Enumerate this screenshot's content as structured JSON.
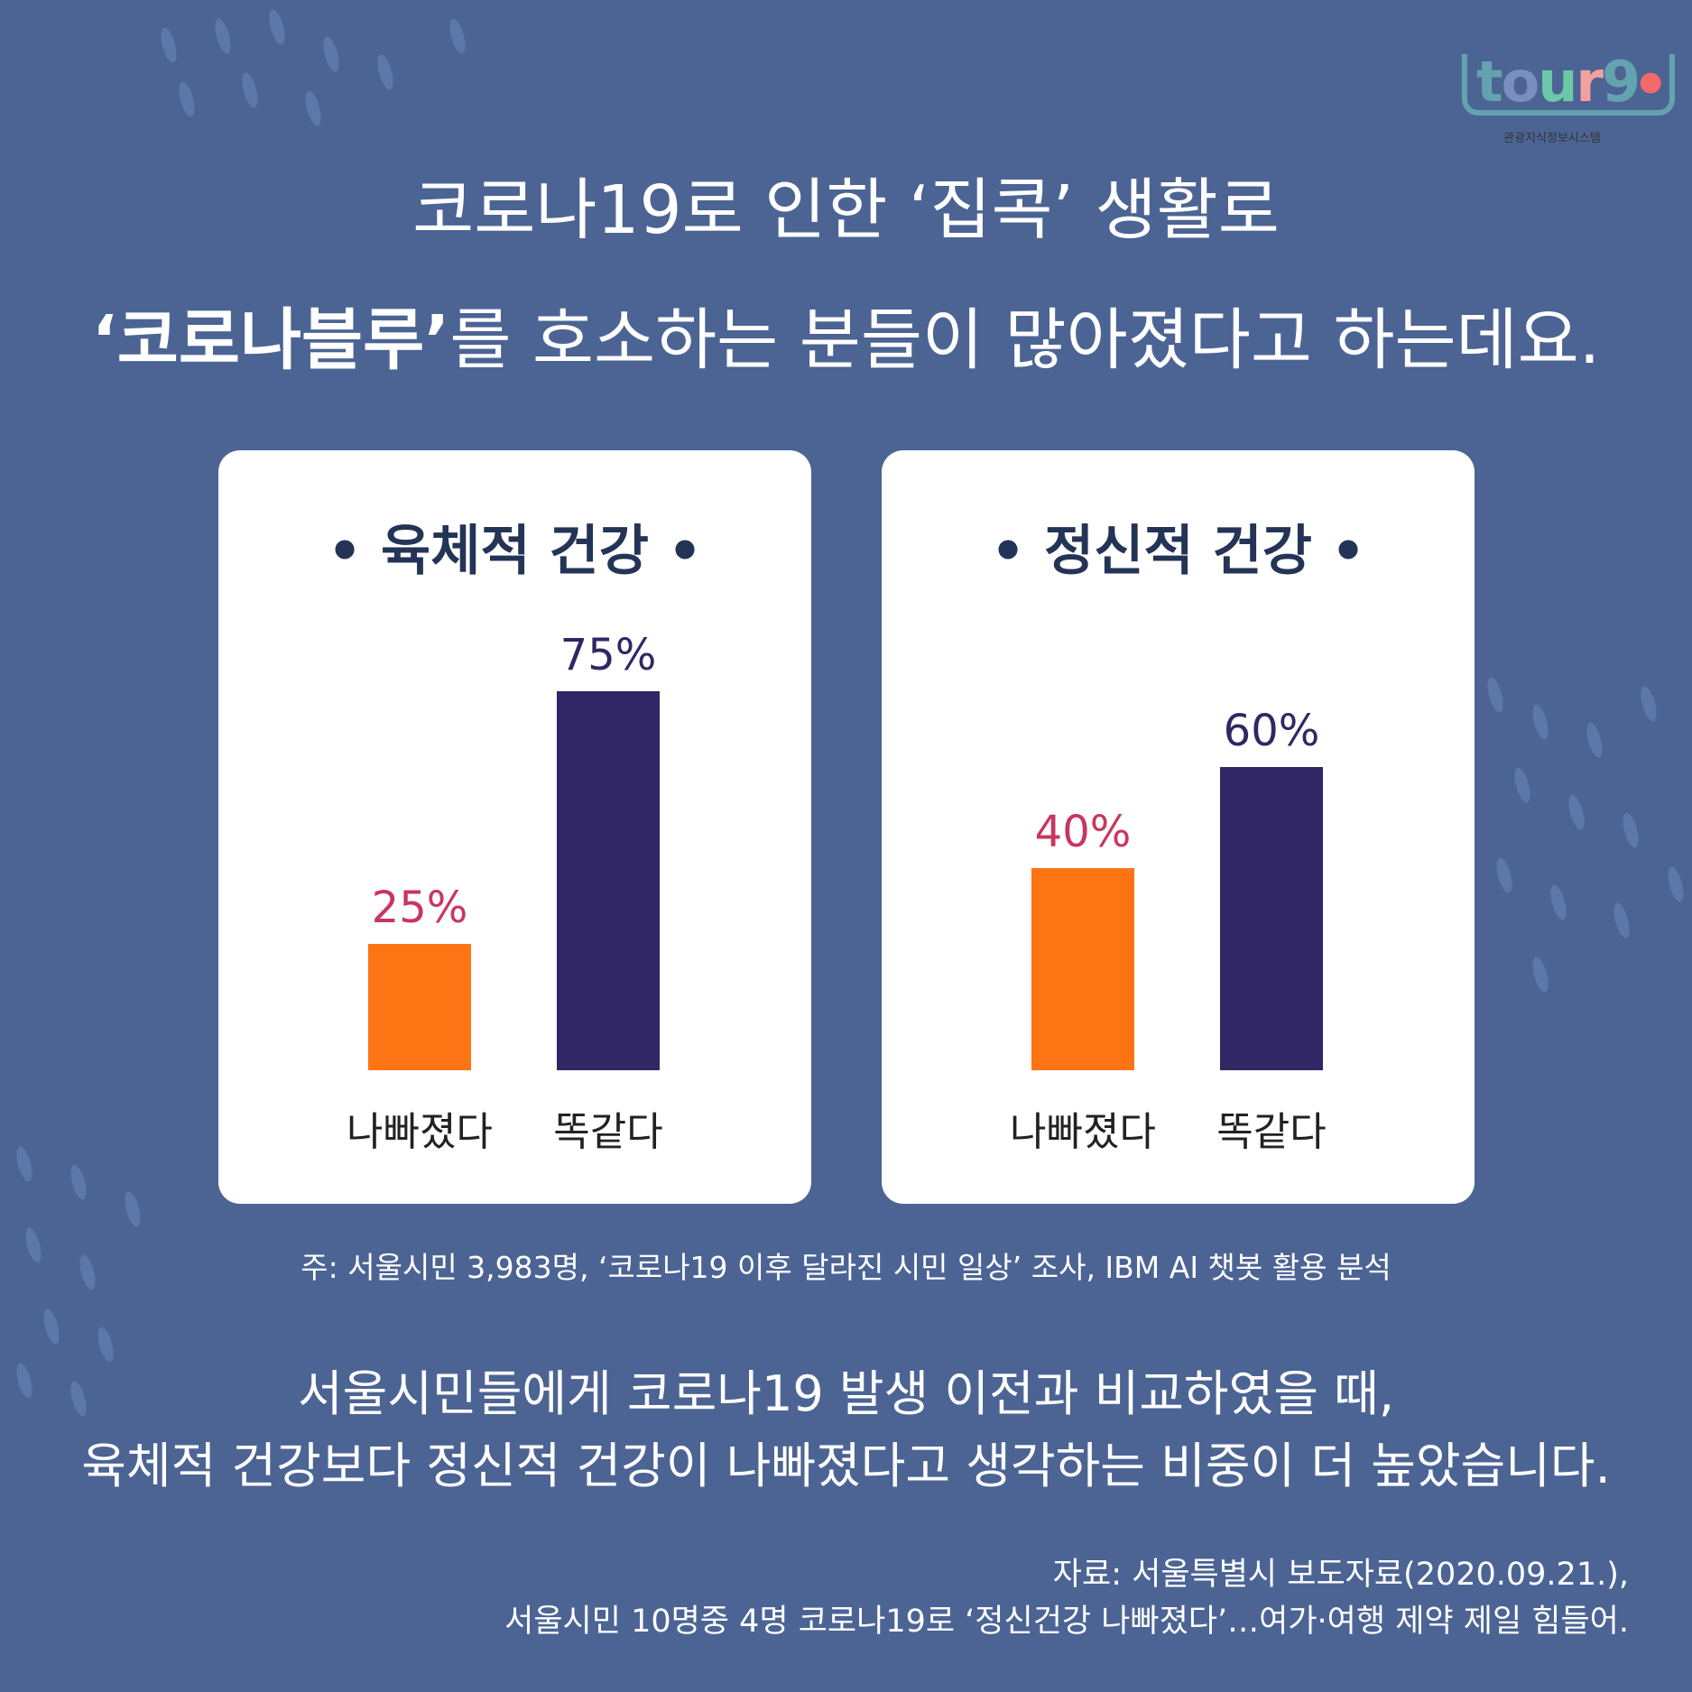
{
  "logo": {
    "text": "tour9",
    "subtitle": "관광지식정보시스템"
  },
  "title": {
    "line1": "코로나19로 인한 ‘집콕’ 생활로",
    "line2_bold": "‘코로나블루’",
    "line2_rest": "를 호소하는 분들이 많아졌다고 하는데요."
  },
  "colors": {
    "background": "#4c6494",
    "worse": "#fd7415",
    "same": "#302764",
    "worse_label": "#c8365f"
  },
  "chart_data": [
    {
      "type": "bar",
      "title": "• 육체적 건강 •",
      "categories": [
        "나빠졌다",
        "똑같다"
      ],
      "values": [
        25,
        75
      ],
      "value_labels": [
        "25%",
        "75%"
      ],
      "ylim": [
        0,
        100
      ]
    },
    {
      "type": "bar",
      "title": "• 정신적 건강 •",
      "categories": [
        "나빠졌다",
        "똑같다"
      ],
      "values": [
        40,
        60
      ],
      "value_labels": [
        "40%",
        "60%"
      ],
      "ylim": [
        0,
        100
      ]
    }
  ],
  "footnote": "주: 서울시민 3,983명, ‘코로나19 이후 달라진 시민 일상’ 조사, IBM AI 챗봇 활용 분석",
  "summary": {
    "line1": "서울시민들에게 코로나19 발생 이전과 비교하였을 때,",
    "line2": "육체적 건강보다 정신적 건강이 나빠졌다고 생각하는 비중이 더 높았습니다."
  },
  "source": {
    "line1": "자료: 서울특별시 보도자료(2020.09.21.),",
    "line2": "서울시민 10명중 4명 코로나19로 ‘정신건강 나빠졌다’…여가·여행 제약 제일 힘들어."
  }
}
